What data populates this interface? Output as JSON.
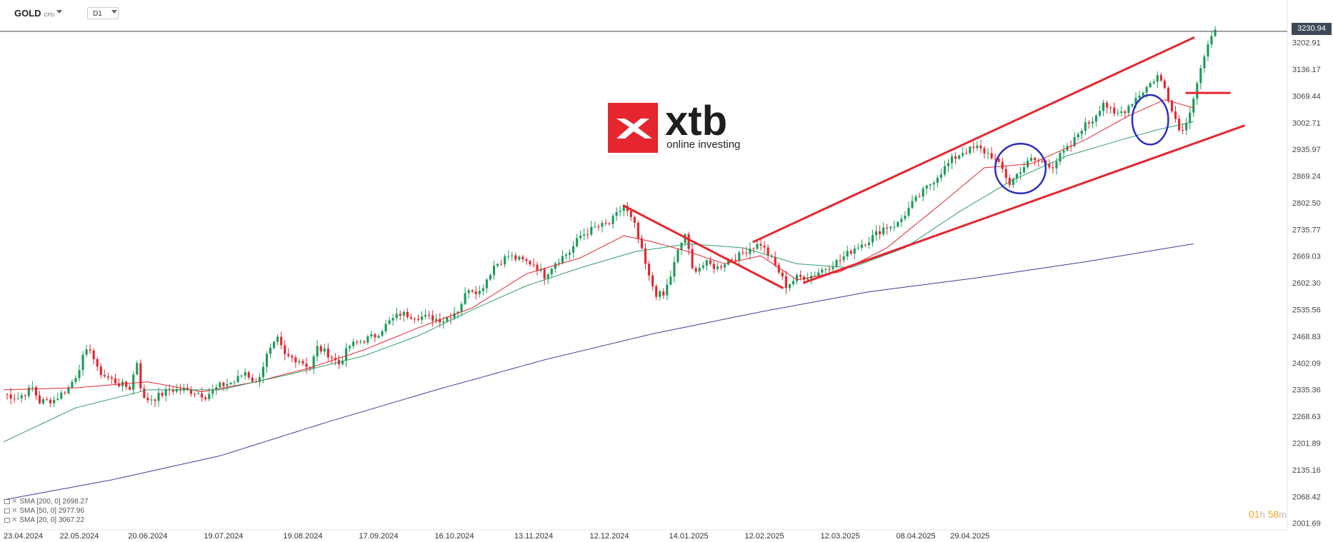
{
  "toolbar": {
    "symbol": "GOLD",
    "symbol_sub": "CFD",
    "timeframe": "D1"
  },
  "logo": {
    "brand": "xtb",
    "tagline": "online investing"
  },
  "timer": {
    "hours": "01",
    "h_unit": "h",
    "minutes": "58",
    "m_unit": "m"
  },
  "legend": [
    {
      "text": "SMA [200, 0] 2698.27"
    },
    {
      "text": "SMA [50, 0] 2977.96"
    },
    {
      "text": "SMA [20, 0] 3067.22"
    }
  ],
  "colors": {
    "up": "#1a9c5b",
    "down": "#e5262f",
    "sma20": "#e5262f",
    "sma50": "#2e9e6b",
    "sma200": "#3b3f9c",
    "annotation": "#e5262f",
    "circle": "#2d2fb8",
    "price_line": "#3d4856"
  },
  "chart_data": {
    "type": "candlestick",
    "symbol": "GOLD",
    "timeframe": "D1",
    "ylim": [
      1985,
      3270
    ],
    "y_ticks": [
      "3202.91",
      "3136.17",
      "3069.44",
      "3002.71",
      "2935.97",
      "2869.24",
      "2802.50",
      "2735.77",
      "2669.03",
      "2602.30",
      "2535.56",
      "2468.83",
      "2402.09",
      "2335.36",
      "2268.63",
      "2201.89",
      "2135.16",
      "2068.42",
      "2001.69"
    ],
    "x_ticks": [
      "23.04.2024",
      "22.05.2024",
      "20.06.2024",
      "19.07.2024",
      "19.08.2024",
      "17.09.2024",
      "16.10.2024",
      "13.11.2024",
      "12.12.2024",
      "14.01.2025",
      "12.02.2025",
      "12.03.2025",
      "08.04.2025",
      "29.04.2025"
    ],
    "last_price": "3230.94",
    "close_path": [
      [
        0,
        2325
      ],
      [
        4,
        2315
      ],
      [
        8,
        2340
      ],
      [
        10,
        2305
      ],
      [
        14,
        2310
      ],
      [
        18,
        2340
      ],
      [
        20,
        2370
      ],
      [
        22,
        2415
      ],
      [
        24,
        2440
      ],
      [
        26,
        2385
      ],
      [
        28,
        2370
      ],
      [
        32,
        2350
      ],
      [
        35,
        2340
      ],
      [
        37,
        2405
      ],
      [
        38,
        2345
      ],
      [
        39,
        2310
      ],
      [
        42,
        2315
      ],
      [
        46,
        2335
      ],
      [
        50,
        2335
      ],
      [
        53,
        2330
      ],
      [
        56,
        2320
      ],
      [
        60,
        2345
      ],
      [
        64,
        2355
      ],
      [
        67,
        2380
      ],
      [
        70,
        2350
      ],
      [
        73,
        2420
      ],
      [
        76,
        2460
      ],
      [
        78,
        2420
      ],
      [
        82,
        2410
      ],
      [
        85,
        2390
      ],
      [
        87,
        2440
      ],
      [
        90,
        2425
      ],
      [
        93,
        2400
      ],
      [
        96,
        2445
      ],
      [
        100,
        2460
      ],
      [
        103,
        2470
      ],
      [
        107,
        2505
      ],
      [
        110,
        2525
      ],
      [
        114,
        2520
      ],
      [
        118,
        2515
      ],
      [
        122,
        2510
      ],
      [
        126,
        2535
      ],
      [
        129,
        2590
      ],
      [
        132,
        2580
      ],
      [
        136,
        2645
      ],
      [
        140,
        2670
      ],
      [
        143,
        2660
      ],
      [
        147,
        2650
      ],
      [
        150,
        2620
      ],
      [
        153,
        2655
      ],
      [
        157,
        2680
      ],
      [
        160,
        2720
      ],
      [
        164,
        2740
      ],
      [
        168,
        2750
      ],
      [
        172,
        2795
      ],
      [
        175,
        2745
      ],
      [
        177,
        2680
      ],
      [
        179,
        2615
      ],
      [
        181,
        2575
      ],
      [
        183,
        2570
      ],
      [
        185,
        2620
      ],
      [
        187,
        2680
      ],
      [
        189,
        2725
      ],
      [
        191,
        2635
      ],
      [
        195,
        2650
      ],
      [
        198,
        2640
      ],
      [
        201,
        2660
      ],
      [
        204,
        2670
      ],
      [
        207,
        2690
      ],
      [
        210,
        2700
      ],
      [
        213,
        2660
      ],
      [
        215,
        2630
      ],
      [
        217,
        2595
      ],
      [
        220,
        2615
      ],
      [
        224,
        2620
      ],
      [
        228,
        2640
      ],
      [
        232,
        2660
      ],
      [
        236,
        2690
      ],
      [
        240,
        2710
      ],
      [
        244,
        2740
      ],
      [
        248,
        2750
      ],
      [
        252,
        2800
      ],
      [
        256,
        2840
      ],
      [
        260,
        2880
      ],
      [
        263,
        2910
      ],
      [
        266,
        2930
      ],
      [
        270,
        2940
      ],
      [
        274,
        2920
      ],
      [
        277,
        2885
      ],
      [
        279,
        2850
      ],
      [
        282,
        2885
      ],
      [
        285,
        2910
      ],
      [
        288,
        2905
      ],
      [
        291,
        2895
      ],
      [
        293,
        2920
      ],
      [
        296,
        2945
      ],
      [
        299,
        2990
      ],
      [
        302,
        3010
      ],
      [
        305,
        3055
      ],
      [
        308,
        3020
      ],
      [
        311,
        3035
      ],
      [
        314,
        3065
      ],
      [
        318,
        3100
      ],
      [
        320,
        3120
      ],
      [
        322,
        3090
      ],
      [
        324,
        3040
      ],
      [
        326,
        2985
      ],
      [
        328,
        3000
      ],
      [
        330,
        3070
      ],
      [
        332,
        3140
      ],
      [
        334,
        3190
      ],
      [
        336,
        3235
      ]
    ],
    "series": [
      {
        "name": "SMA [20, 0] 3067.22",
        "values": [
          [
            0,
            2335
          ],
          [
            20,
            2340
          ],
          [
            40,
            2355
          ],
          [
            55,
            2330
          ],
          [
            70,
            2355
          ],
          [
            85,
            2390
          ],
          [
            100,
            2435
          ],
          [
            115,
            2490
          ],
          [
            130,
            2540
          ],
          [
            145,
            2625
          ],
          [
            160,
            2665
          ],
          [
            172,
            2720
          ],
          [
            180,
            2705
          ],
          [
            190,
            2680
          ],
          [
            200,
            2650
          ],
          [
            210,
            2670
          ],
          [
            220,
            2610
          ],
          [
            232,
            2630
          ],
          [
            245,
            2690
          ],
          [
            260,
            2800
          ],
          [
            272,
            2890
          ],
          [
            285,
            2900
          ],
          [
            300,
            2960
          ],
          [
            312,
            3020
          ],
          [
            322,
            3060
          ],
          [
            330,
            3040
          ]
        ]
      },
      {
        "name": "SMA [50, 0] 2977.96",
        "values": [
          [
            0,
            2205
          ],
          [
            20,
            2290
          ],
          [
            40,
            2335
          ],
          [
            60,
            2335
          ],
          [
            80,
            2375
          ],
          [
            100,
            2420
          ],
          [
            115,
            2470
          ],
          [
            130,
            2535
          ],
          [
            145,
            2595
          ],
          [
            160,
            2640
          ],
          [
            175,
            2680
          ],
          [
            190,
            2700
          ],
          [
            205,
            2690
          ],
          [
            220,
            2650
          ],
          [
            235,
            2640
          ],
          [
            250,
            2690
          ],
          [
            265,
            2780
          ],
          [
            280,
            2860
          ],
          [
            295,
            2920
          ],
          [
            310,
            2960
          ],
          [
            320,
            2985
          ],
          [
            330,
            3005
          ]
        ]
      },
      {
        "name": "SMA [200, 0] 2698.27",
        "values": [
          [
            0,
            2060
          ],
          [
            30,
            2110
          ],
          [
            60,
            2170
          ],
          [
            90,
            2255
          ],
          [
            120,
            2335
          ],
          [
            150,
            2410
          ],
          [
            180,
            2475
          ],
          [
            210,
            2530
          ],
          [
            240,
            2580
          ],
          [
            270,
            2615
          ],
          [
            300,
            2655
          ],
          [
            320,
            2685
          ],
          [
            330,
            2700
          ]
        ]
      }
    ],
    "annotations": [
      {
        "type": "line",
        "from": [
          172,
          2795
        ],
        "to": [
          216,
          2590
        ]
      },
      {
        "type": "line",
        "from": [
          208,
          2705
        ],
        "to": [
          330,
          3215
        ]
      },
      {
        "type": "line",
        "from": [
          222,
          2603
        ],
        "to": [
          344,
          2995
        ]
      },
      {
        "type": "line",
        "from": [
          328,
          3077
        ],
        "to": [
          340,
          3077
        ]
      },
      {
        "type": "ellipse",
        "center": [
          282,
          2888
        ],
        "rx": 7,
        "ry": 62
      },
      {
        "type": "ellipse",
        "center": [
          318,
          3010
        ],
        "rx": 5,
        "ry": 62
      }
    ]
  }
}
